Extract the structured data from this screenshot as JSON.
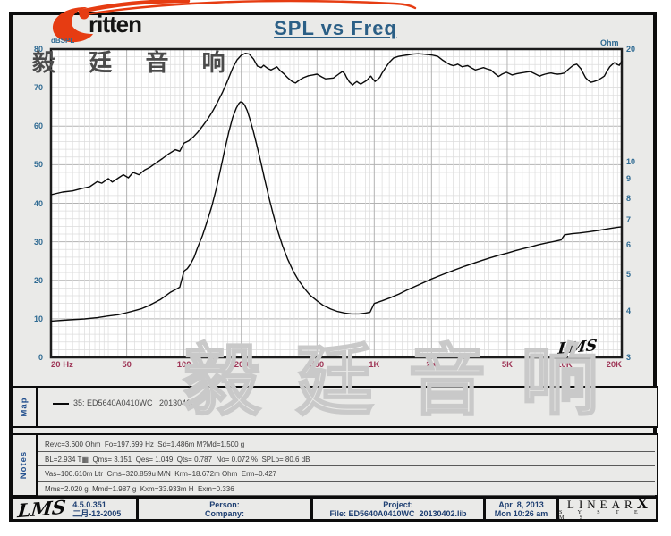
{
  "header": {
    "logo_text": "ritten",
    "title": "SPL vs Freq",
    "watermark": "毅 廷 音 响"
  },
  "chart": {
    "y_left_label": "dBSPL",
    "y_right_label": "Ohm",
    "corner_logo": "LMS",
    "colors": {
      "tick_blue": "#2f6a92",
      "tick_maroon": "#9e3556",
      "title_blue": "#2b5f86",
      "curve": "#0a0a0a",
      "grid_minor": "#dcdcdc",
      "grid_major": "#b3b3b3",
      "plot_border": "#1c1c1c",
      "logo_red": "#e63c12"
    }
  },
  "chart_data": {
    "type": "line",
    "title": "SPL vs Freq",
    "grid": true,
    "legend_position": "map-panel-below-chart",
    "x_axis": {
      "label": "Hz",
      "scale": "log",
      "min": 20,
      "max": 20000,
      "ticks": [
        {
          "f": 20,
          "label": "20 Hz",
          "anchor": "start"
        },
        {
          "f": 50,
          "label": "50"
        },
        {
          "f": 100,
          "label": "100"
        },
        {
          "f": 200,
          "label": "200"
        },
        {
          "f": 500,
          "label": "500"
        },
        {
          "f": 1000,
          "label": "1K"
        },
        {
          "f": 2000,
          "label": "2K"
        },
        {
          "f": 5000,
          "label": "5K"
        },
        {
          "f": 10000,
          "label": "10K"
        },
        {
          "f": 20000,
          "label": "20K",
          "anchor": "end"
        }
      ]
    },
    "y_axis_left": {
      "label": "dBSPL",
      "min": 0,
      "max": 80,
      "minor_step": 2,
      "ticks": [
        80,
        70,
        60,
        50,
        40,
        30,
        20,
        10,
        0
      ]
    },
    "y_axis_right": {
      "label": "Ohm",
      "scale": "log",
      "min": 3,
      "max": 20,
      "ticks": [
        20,
        10,
        9,
        8,
        7,
        6,
        5,
        4,
        3
      ]
    },
    "series": [
      {
        "name": "35: ED5640A0410WC 20130406 - SPL",
        "axis": "left",
        "unit": "dBSPL",
        "points": [
          [
            20,
            42.2
          ],
          [
            23,
            42.9
          ],
          [
            26,
            43.2
          ],
          [
            29,
            43.8
          ],
          [
            32,
            44.3
          ],
          [
            35,
            45.6
          ],
          [
            37,
            45.2
          ],
          [
            40,
            46.4
          ],
          [
            42,
            45.5
          ],
          [
            45,
            46.5
          ],
          [
            48,
            47.4
          ],
          [
            51,
            46.6
          ],
          [
            54,
            48.0
          ],
          [
            58,
            47.4
          ],
          [
            62,
            48.6
          ],
          [
            66,
            49.3
          ],
          [
            71,
            50.4
          ],
          [
            77,
            51.6
          ],
          [
            83,
            52.8
          ],
          [
            90,
            53.9
          ],
          [
            95,
            53.5
          ],
          [
            100,
            55.6
          ],
          [
            106,
            56.2
          ],
          [
            112,
            57.2
          ],
          [
            118,
            58.4
          ],
          [
            125,
            60.0
          ],
          [
            133,
            61.8
          ],
          [
            141,
            63.8
          ],
          [
            150,
            66.2
          ],
          [
            160,
            69.0
          ],
          [
            170,
            72.0
          ],
          [
            180,
            75.0
          ],
          [
            190,
            77.2
          ],
          [
            200,
            78.4
          ],
          [
            210,
            78.9
          ],
          [
            220,
            78.7
          ],
          [
            232,
            77.4
          ],
          [
            243,
            75.6
          ],
          [
            255,
            75.2
          ],
          [
            262,
            75.8
          ],
          [
            275,
            75.0
          ],
          [
            287,
            74.6
          ],
          [
            300,
            75.1
          ],
          [
            308,
            75.4
          ],
          [
            320,
            74.4
          ],
          [
            335,
            73.6
          ],
          [
            350,
            72.6
          ],
          [
            370,
            71.6
          ],
          [
            385,
            71.2
          ],
          [
            405,
            72.0
          ],
          [
            425,
            72.6
          ],
          [
            450,
            73.1
          ],
          [
            475,
            73.3
          ],
          [
            500,
            73.5
          ],
          [
            530,
            72.8
          ],
          [
            555,
            72.3
          ],
          [
            580,
            72.4
          ],
          [
            610,
            72.5
          ],
          [
            645,
            73.4
          ],
          [
            680,
            74.2
          ],
          [
            700,
            73.6
          ],
          [
            715,
            72.7
          ],
          [
            740,
            71.5
          ],
          [
            770,
            70.7
          ],
          [
            790,
            71.2
          ],
          [
            810,
            71.6
          ],
          [
            830,
            71.2
          ],
          [
            850,
            70.9
          ],
          [
            880,
            71.4
          ],
          [
            915,
            71.9
          ],
          [
            940,
            72.6
          ],
          [
            960,
            73.0
          ],
          [
            985,
            72.2
          ],
          [
            1010,
            71.6
          ],
          [
            1040,
            72.1
          ],
          [
            1070,
            72.7
          ],
          [
            1100,
            73.8
          ],
          [
            1140,
            75.0
          ],
          [
            1200,
            76.6
          ],
          [
            1265,
            77.7
          ],
          [
            1340,
            78.1
          ],
          [
            1415,
            78.3
          ],
          [
            1500,
            78.5
          ],
          [
            1600,
            78.7
          ],
          [
            1700,
            78.8
          ],
          [
            1800,
            78.7
          ],
          [
            1890,
            78.6
          ],
          [
            1990,
            78.5
          ],
          [
            2080,
            78.3
          ],
          [
            2160,
            78.1
          ],
          [
            2280,
            77.2
          ],
          [
            2400,
            76.5
          ],
          [
            2500,
            76.0
          ],
          [
            2600,
            75.7
          ],
          [
            2680,
            75.9
          ],
          [
            2750,
            76.1
          ],
          [
            2830,
            75.7
          ],
          [
            2900,
            75.4
          ],
          [
            3000,
            75.6
          ],
          [
            3100,
            75.7
          ],
          [
            3250,
            75.1
          ],
          [
            3400,
            74.6
          ],
          [
            3570,
            74.9
          ],
          [
            3750,
            75.2
          ],
          [
            3900,
            74.9
          ],
          [
            4100,
            74.6
          ],
          [
            4300,
            73.7
          ],
          [
            4500,
            72.9
          ],
          [
            4700,
            73.5
          ],
          [
            4950,
            74.0
          ],
          [
            5150,
            73.6
          ],
          [
            5300,
            73.3
          ],
          [
            5600,
            73.6
          ],
          [
            5900,
            73.8
          ],
          [
            6200,
            74.0
          ],
          [
            6600,
            74.2
          ],
          [
            7000,
            73.6
          ],
          [
            7400,
            73.0
          ],
          [
            7650,
            73.3
          ],
          [
            7900,
            73.5
          ],
          [
            8200,
            73.7
          ],
          [
            8500,
            73.8
          ],
          [
            8850,
            73.6
          ],
          [
            9200,
            73.5
          ],
          [
            9600,
            73.6
          ],
          [
            10000,
            73.8
          ],
          [
            10500,
            74.8
          ],
          [
            11100,
            75.8
          ],
          [
            11600,
            76.1
          ],
          [
            12200,
            74.9
          ],
          [
            12900,
            72.6
          ],
          [
            13300,
            71.9
          ],
          [
            13800,
            71.4
          ],
          [
            14300,
            71.6
          ],
          [
            14900,
            71.9
          ],
          [
            15500,
            72.4
          ],
          [
            16200,
            73.0
          ],
          [
            16700,
            74.2
          ],
          [
            17300,
            75.4
          ],
          [
            17800,
            76.0
          ],
          [
            18300,
            76.5
          ],
          [
            18800,
            76.1
          ],
          [
            19400,
            75.8
          ],
          [
            20000,
            76.9
          ]
        ]
      },
      {
        "name": "35: ED5640A0410WC 20130406 - Impedance",
        "axis": "right",
        "unit": "Ohm",
        "points": [
          [
            20,
            3.75
          ],
          [
            25,
            3.78
          ],
          [
            30,
            3.8
          ],
          [
            35,
            3.83
          ],
          [
            40,
            3.87
          ],
          [
            45,
            3.9
          ],
          [
            50,
            3.95
          ],
          [
            55,
            4.0
          ],
          [
            60,
            4.05
          ],
          [
            65,
            4.12
          ],
          [
            70,
            4.2
          ],
          [
            75,
            4.28
          ],
          [
            80,
            4.38
          ],
          [
            85,
            4.48
          ],
          [
            90,
            4.55
          ],
          [
            95,
            4.62
          ],
          [
            100,
            5.1
          ],
          [
            104,
            5.18
          ],
          [
            108,
            5.32
          ],
          [
            113,
            5.55
          ],
          [
            118,
            5.9
          ],
          [
            125,
            6.35
          ],
          [
            132,
            6.9
          ],
          [
            140,
            7.6
          ],
          [
            148,
            8.5
          ],
          [
            156,
            9.6
          ],
          [
            164,
            10.8
          ],
          [
            172,
            12.0
          ],
          [
            180,
            13.1
          ],
          [
            188,
            13.9
          ],
          [
            194,
            14.3
          ],
          [
            198,
            14.45
          ],
          [
            203,
            14.4
          ],
          [
            208,
            14.2
          ],
          [
            215,
            13.7
          ],
          [
            222,
            13.0
          ],
          [
            230,
            12.2
          ],
          [
            240,
            11.2
          ],
          [
            252,
            10.1
          ],
          [
            265,
            9.0
          ],
          [
            280,
            8.0
          ],
          [
            295,
            7.2
          ],
          [
            312,
            6.5
          ],
          [
            330,
            5.95
          ],
          [
            350,
            5.5
          ],
          [
            375,
            5.1
          ],
          [
            400,
            4.82
          ],
          [
            430,
            4.58
          ],
          [
            460,
            4.4
          ],
          [
            500,
            4.25
          ],
          [
            540,
            4.13
          ],
          [
            590,
            4.04
          ],
          [
            640,
            3.98
          ],
          [
            700,
            3.94
          ],
          [
            760,
            3.92
          ],
          [
            830,
            3.92
          ],
          [
            900,
            3.94
          ],
          [
            950,
            3.96
          ],
          [
            1000,
            4.18
          ],
          [
            1100,
            4.25
          ],
          [
            1200,
            4.32
          ],
          [
            1350,
            4.43
          ],
          [
            1500,
            4.55
          ],
          [
            1700,
            4.68
          ],
          [
            2000,
            4.86
          ],
          [
            2300,
            5.0
          ],
          [
            2600,
            5.12
          ],
          [
            3000,
            5.26
          ],
          [
            3500,
            5.4
          ],
          [
            4000,
            5.52
          ],
          [
            4500,
            5.62
          ],
          [
            5000,
            5.7
          ],
          [
            5500,
            5.78
          ],
          [
            6000,
            5.85
          ],
          [
            6600,
            5.92
          ],
          [
            7300,
            6.0
          ],
          [
            8000,
            6.06
          ],
          [
            8800,
            6.12
          ],
          [
            9600,
            6.18
          ],
          [
            10000,
            6.38
          ],
          [
            11000,
            6.42
          ],
          [
            12000,
            6.45
          ],
          [
            13500,
            6.5
          ],
          [
            15000,
            6.55
          ],
          [
            17000,
            6.62
          ],
          [
            19000,
            6.68
          ],
          [
            20000,
            6.7
          ]
        ]
      }
    ]
  },
  "map_panel": {
    "label": "Map",
    "legend_text": "35: ED5640A0410WC   20130406"
  },
  "notes_panel": {
    "label": "Notes",
    "lines": [
      "Revc=3.600 Ohm  Fo=197.699 Hz  Sd=1.486m M?Md=1.500 g",
      "BL=2.934 T▦  Qms= 3.151  Qes= 1.049  Qts= 0.787  No= 0.072 %  SPLo= 80.6 dB",
      "Vas=100.610m Ltr  Cms=320.859u M/N  Krm=18.672m Ohm  Erm=0.427",
      "Mms=2.020 g  Mmd=1.987 g  Kxm=33.933m H  Exm=0.336"
    ]
  },
  "footer": {
    "lms_logo": "LMS",
    "version": "4.5.0.351",
    "version_date": "二月-12-2005",
    "person_label": "Person:",
    "company_label": "Company:",
    "project_label": "Project:",
    "file_label": "File: ED5640A0410WC  20130402.lib",
    "date": "Apr  8, 2013",
    "time": "Mon 10:26 am",
    "brand_main": "LINEAR",
    "brand_x": "X",
    "brand_sub": "S Y S T E M S"
  }
}
